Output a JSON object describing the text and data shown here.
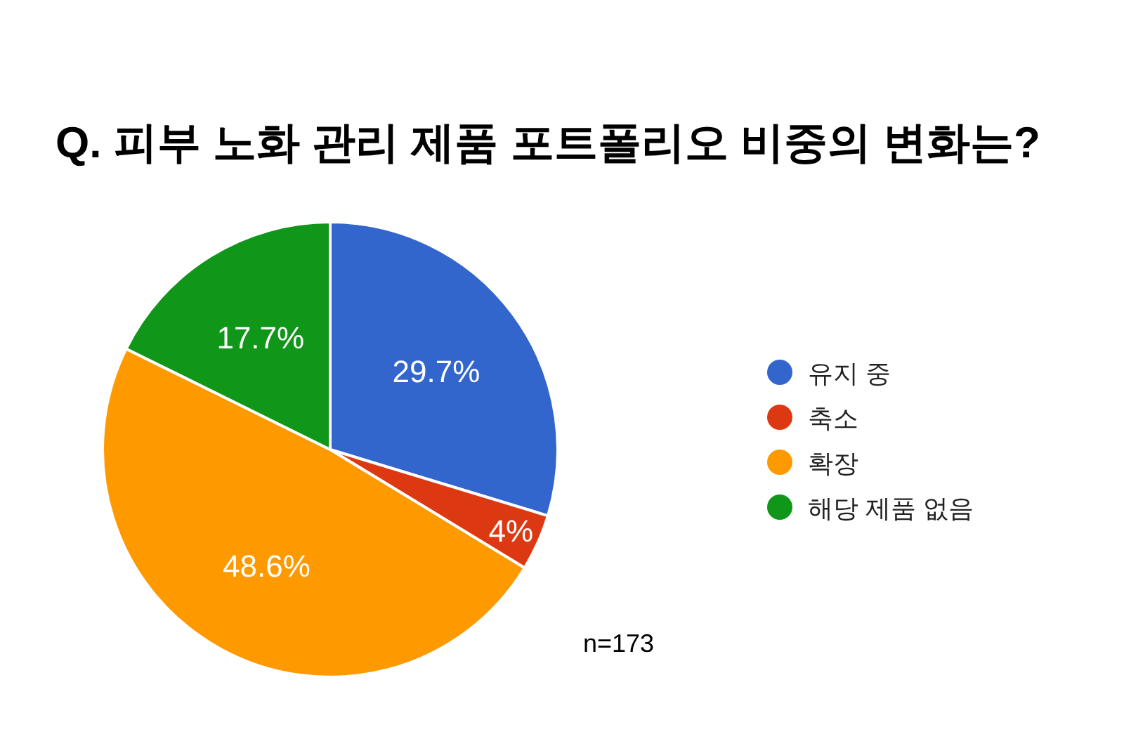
{
  "chart_data": {
    "type": "pie",
    "title": "Q. 피부 노화 관리 제품 포트폴리오 비중의 변화는?",
    "categories": [
      "유지 중",
      "축소",
      "확장",
      "해당 제품 없음"
    ],
    "values": [
      29.7,
      4,
      48.6,
      17.7
    ],
    "colors": [
      "#3366cc",
      "#dc3912",
      "#ff9900",
      "#109618"
    ],
    "value_labels": [
      "29.7%",
      "4%",
      "48.6%",
      "17.7%"
    ],
    "legend": "right",
    "annotations": [
      "n=173"
    ]
  }
}
